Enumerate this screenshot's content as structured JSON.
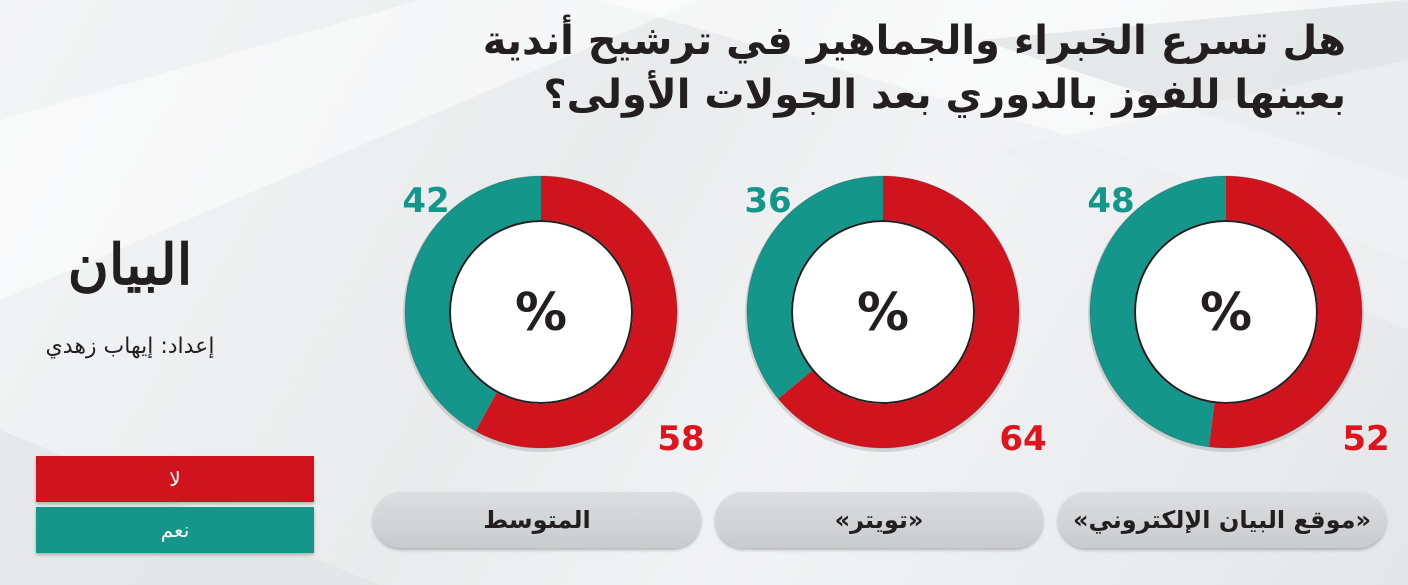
{
  "title": {
    "line1": "هل تسرع الخبراء والجماهير في ترشيح أندية",
    "line2": "بعينها للفوز بالدوري بعد الجولات الأولى؟"
  },
  "brand": {
    "logo_text": "البيان",
    "credit": "إعداد: إيهاب زهدي"
  },
  "colors": {
    "yes": "#14968a",
    "no": "#d0141d",
    "yes_label": "#14968a",
    "no_label": "#e0141c"
  },
  "legend": [
    {
      "key": "no",
      "label": "لا"
    },
    {
      "key": "yes",
      "label": "نعم"
    }
  ],
  "chart_data": {
    "type": "pie",
    "unit_symbol": "%",
    "series": [
      {
        "key": "no",
        "label": "لا"
      },
      {
        "key": "yes",
        "label": "نعم"
      }
    ],
    "charts": [
      {
        "category": "«موقع البيان الإلكتروني»",
        "yes": 48,
        "no": 52
      },
      {
        "category": "«تويتر»",
        "yes": 36,
        "no": 64
      },
      {
        "category": "المتوسط",
        "yes": 42,
        "no": 58
      }
    ]
  }
}
